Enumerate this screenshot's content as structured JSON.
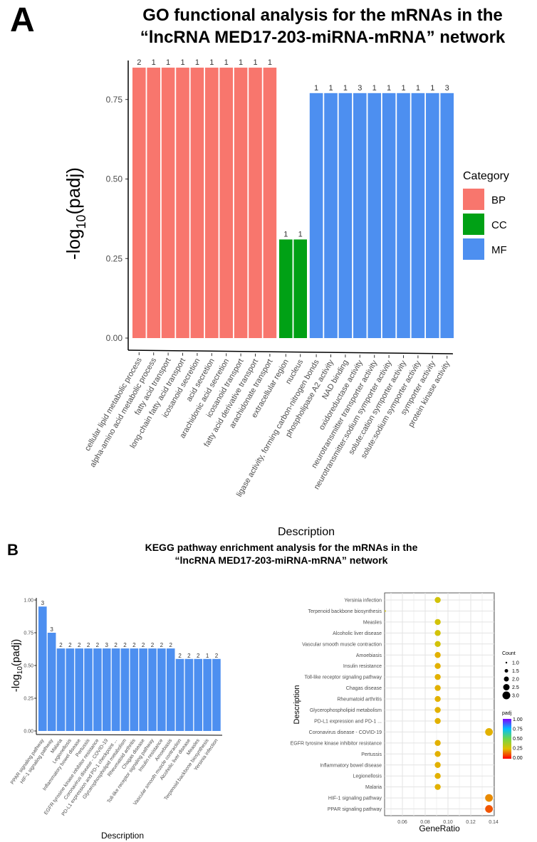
{
  "panel_a": {
    "label": "A"
  },
  "panel_b": {
    "label": "B"
  },
  "chart_data": [
    {
      "type": "bar",
      "title": "GO functional analysis for the mRNAs in the “lncRNA MED17-203-miRNA-mRNA” network",
      "title_lines": [
        "GO functional analysis for the mRNAs in the",
        "“lncRNA MED17-203-miRNA-mRNA” network"
      ],
      "xlabel": "Description",
      "ylabel_main": "-log",
      "ylabel_sub": "10",
      "ylabel_tail": "(padj)",
      "ylim": [
        0,
        0.85
      ],
      "yticks": [
        "0.00",
        "0.25",
        "0.50",
        "0.75"
      ],
      "legend": {
        "title": "Category",
        "position": "right",
        "items": [
          {
            "name": "BP",
            "color": "#F8766D"
          },
          {
            "name": "CC",
            "color": "#00A115"
          },
          {
            "name": "MF",
            "color": "#4D8FF0"
          }
        ]
      },
      "categories": [
        "cellular lipid metabolic process",
        "alpha-amino acid metabolic process",
        "fatty acid transport",
        "long-chain fatty acid transport",
        "icosanoid secretion",
        "acid secretion",
        "arachidonic acid secretion",
        "icosanoid transport",
        "fatty acid derivative transport",
        "arachidonate transport",
        "extracellular region",
        "nucleus",
        "ligase activity, forming carbon-nitrogen bonds",
        "phospholipase A2 activity",
        "NAD binding",
        "oxidoreductase activity",
        "neurotransmitter transporter activity",
        "neurotransmitter:sodium symporter activity",
        "solute:cation symporter activity",
        "solute:sodium symporter activity",
        "symporter activity",
        "protein kinase activity"
      ],
      "group": [
        "BP",
        "BP",
        "BP",
        "BP",
        "BP",
        "BP",
        "BP",
        "BP",
        "BP",
        "BP",
        "CC",
        "CC",
        "MF",
        "MF",
        "MF",
        "MF",
        "MF",
        "MF",
        "MF",
        "MF",
        "MF",
        "MF"
      ],
      "values": [
        0.85,
        0.85,
        0.85,
        0.85,
        0.85,
        0.85,
        0.85,
        0.85,
        0.85,
        0.85,
        0.31,
        0.31,
        0.77,
        0.77,
        0.77,
        0.77,
        0.77,
        0.77,
        0.77,
        0.77,
        0.77,
        0.77
      ],
      "counts": [
        "2",
        "1",
        "1",
        "1",
        "1",
        "1",
        "1",
        "1",
        "1",
        "1",
        "1",
        "1",
        "1",
        "1",
        "1",
        "3",
        "1",
        "1",
        "1",
        "1",
        "1",
        "3"
      ]
    },
    {
      "type": "bar",
      "title_lines": [
        "KEGG pathway enrichment analysis for the mRNAs in the",
        "“lncRNA MED17-203-miRNA-mRNA” network"
      ],
      "xlabel": "Description",
      "ylabel_main": "-log",
      "ylabel_sub": "10",
      "ylabel_tail": "(padj)",
      "ylim": [
        0,
        1.0
      ],
      "yticks": [
        "0.00",
        "0.25",
        "0.50",
        "0.75",
        "1.00"
      ],
      "color": "#4D8FF0",
      "categories": [
        "PPAR signaling pathway",
        "HIF-1 signaling pathway",
        "Malaria",
        "Legionellosis",
        "Inflammatory bowel disease",
        "Pertussis",
        "EGFR tyrosine kinase inhibitor resistance",
        "Coronavirus disease - COVID-19",
        "PD-L1 expression and PD-1 checkpoint ...",
        "Glycerophospholipid metabolism",
        "Rheumatoid arthritis",
        "Chagas disease",
        "Toll-like receptor signaling pathway",
        "Insulin resistance",
        "Amoebiasis",
        "Vascular smooth muscle contraction",
        "Alcoholic liver disease",
        "Measles",
        "Terpenoid backbone biosynthesis",
        "Yersinia infection"
      ],
      "values": [
        0.95,
        0.75,
        0.63,
        0.63,
        0.63,
        0.63,
        0.63,
        0.63,
        0.63,
        0.63,
        0.63,
        0.63,
        0.63,
        0.63,
        0.63,
        0.55,
        0.55,
        0.55,
        0.55,
        0.55
      ],
      "counts": [
        "3",
        "3",
        "2",
        "2",
        "2",
        "2",
        "2",
        "3",
        "2",
        "2",
        "2",
        "2",
        "2",
        "2",
        "2",
        "2",
        "2",
        "2",
        "1",
        "2"
      ]
    },
    {
      "type": "scatter",
      "xlabel": "GeneRatio",
      "ylabel": "Description",
      "xlim": [
        0.045,
        0.14
      ],
      "xticks": [
        "0.06",
        "0.08",
        "0.10",
        "0.12",
        "0.14"
      ],
      "grid": true,
      "categories": [
        "Yersinia infection",
        "Terpenoid backbone biosynthesis",
        "Measles",
        "Alcoholic liver disease",
        "Vascular smooth muscle contraction",
        "Amoebiasis",
        "Insulin resistance",
        "Toll-like receptor signaling pathway",
        "Chagas disease",
        "Rheumatoid arthritis",
        "Glycerophospholipid metabolism",
        "PD-L1 expression and PD-1 ...",
        "Coronavirus disease - COVID-19",
        "EGFR tyrosine kinase inhibitor resistance",
        "Pertussis",
        "Inflammatory bowel disease",
        "Legionellosis",
        "Malaria",
        "HIF-1 signaling pathway",
        "PPAR signaling pathway"
      ],
      "generatio": [
        0.091,
        0.045,
        0.091,
        0.091,
        0.091,
        0.091,
        0.091,
        0.091,
        0.091,
        0.091,
        0.091,
        0.091,
        0.136,
        0.091,
        0.091,
        0.091,
        0.091,
        0.091,
        0.136,
        0.136
      ],
      "count": [
        2,
        1,
        2,
        2,
        2,
        2,
        2,
        2,
        2,
        2,
        2,
        2,
        3,
        2,
        2,
        2,
        2,
        2,
        3,
        3
      ],
      "padj": [
        0.28,
        0.28,
        0.28,
        0.28,
        0.28,
        0.23,
        0.23,
        0.23,
        0.23,
        0.23,
        0.23,
        0.23,
        0.23,
        0.23,
        0.23,
        0.23,
        0.23,
        0.23,
        0.18,
        0.11
      ],
      "size_legend": {
        "title": "Count",
        "labels": [
          "1.0",
          "1.5",
          "2.0",
          "2.5",
          "3.0"
        ]
      },
      "color_legend": {
        "title": "padj",
        "labels": [
          "1.00",
          "0.75",
          "0.50",
          "0.25",
          "0.00"
        ],
        "colors": [
          "#7F00FF",
          "#00BFFF",
          "#6FD64A",
          "#E0C000",
          "#FF0000"
        ]
      }
    }
  ]
}
